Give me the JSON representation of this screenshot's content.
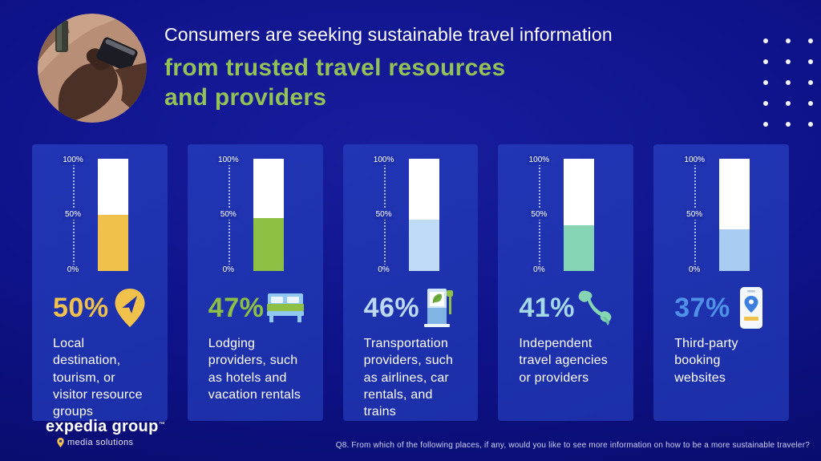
{
  "header": {
    "title_line1": "Consumers are seeking sustainable travel information",
    "title_line2": "from trusted travel resources",
    "title_line3": "and providers"
  },
  "axis": {
    "tick_top": "100%",
    "tick_mid": "50%",
    "tick_bottom": "0%"
  },
  "chart_data": {
    "type": "bar",
    "title": "Consumers are seeking sustainable travel information from trusted travel resources and providers",
    "categories": [
      "Local destination, tourism, or visitor resource groups",
      "Lodging providers, such as hotels and vacation rentals",
      "Transportation providers, such as airlines, car rentals, and trains",
      "Independent travel agencies or providers",
      "Third-party booking websites"
    ],
    "values": [
      50,
      47,
      46,
      41,
      37
    ],
    "value_labels": [
      "50%",
      "47%",
      "46%",
      "41%",
      "37%"
    ],
    "ylabel": "",
    "ylim": [
      0,
      100
    ],
    "axis_ticks": [
      "100%",
      "50%",
      "0%"
    ],
    "bar_colors": [
      "#f1c24b",
      "#8dc044",
      "#bfdbf7",
      "#85d4b3",
      "#a8ccf2"
    ],
    "grid": false,
    "legend": false
  },
  "cards": [
    {
      "pct": "50%",
      "value": 50,
      "label": "Local destination, tourism, or visitor resource groups",
      "bar_color": "#f1c24b",
      "pct_color": "#f1c24b",
      "icon": "location-pin-icon"
    },
    {
      "pct": "47%",
      "value": 47,
      "label": "Lodging providers, such as hotels and vacation rentals",
      "bar_color": "#8dc044",
      "pct_color": "#8dc044",
      "icon": "bed-icon"
    },
    {
      "pct": "46%",
      "value": 46,
      "label": "Transportation providers, such as airlines, car rentals, and trains",
      "bar_color": "#bfdbf7",
      "pct_color": "#bcd8f2",
      "icon": "fuel-pump-icon"
    },
    {
      "pct": "41%",
      "value": 41,
      "label": "Independent travel agencies or providers",
      "bar_color": "#85d4b3",
      "pct_color": "#a5d9e8",
      "icon": "phone-handset-icon"
    },
    {
      "pct": "37%",
      "value": 37,
      "label": "Third-party booking websites",
      "bar_color": "#a8ccf2",
      "pct_color": "#4e91e6",
      "icon": "smartphone-icon"
    }
  ],
  "footer": {
    "logo_text": "expedia group",
    "logo_tm": "™",
    "logo_sub": "media solutions",
    "question": "Q8. From which of the following places, if any, would you like to see more information on how to be a more sustainable traveler?"
  }
}
